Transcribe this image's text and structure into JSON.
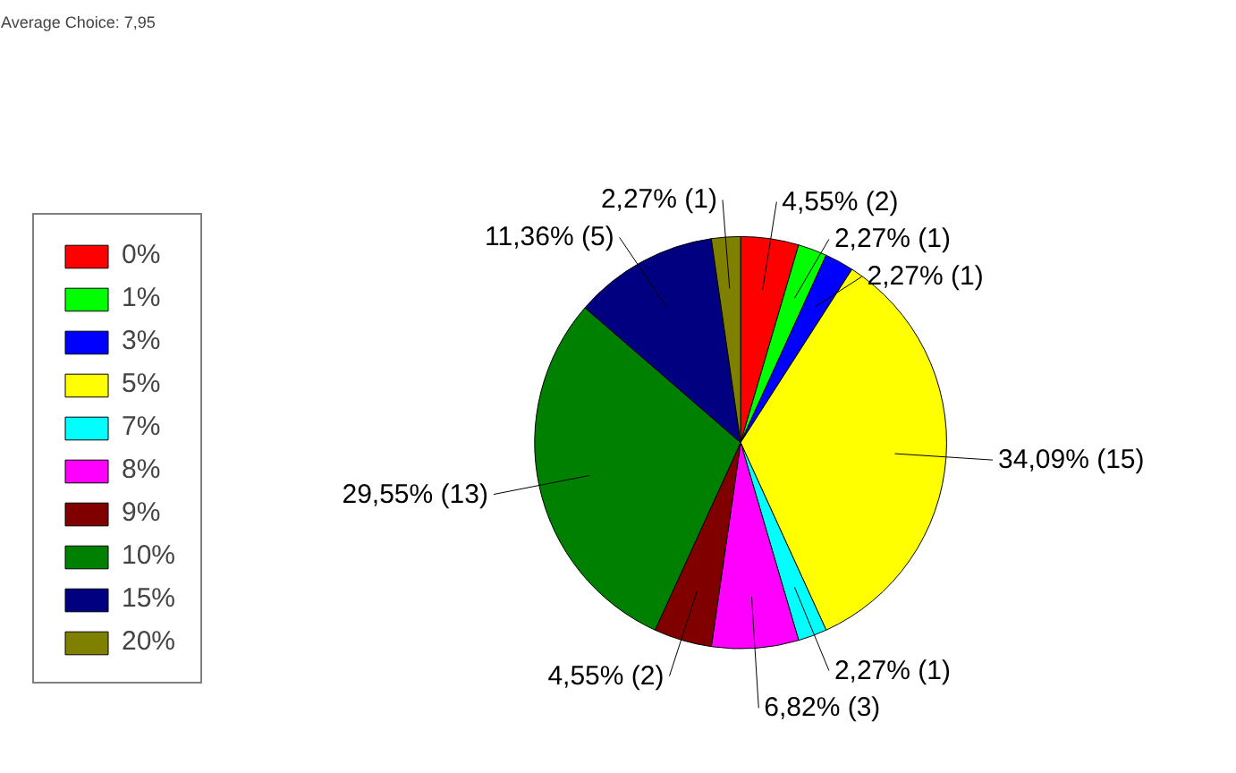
{
  "chart_data": {
    "type": "pie",
    "title": "Average Choice: 7,95",
    "categories": [
      "0%",
      "1%",
      "3%",
      "5%",
      "7%",
      "8%",
      "9%",
      "10%",
      "15%",
      "20%"
    ],
    "values": [
      2,
      1,
      1,
      15,
      1,
      3,
      2,
      13,
      5,
      1
    ],
    "value_labels": [
      "4,55% (2)",
      "2,27% (1)",
      "2,27% (1)",
      "34,09% (15)",
      "2,27% (1)",
      "6,82% (3)",
      "4,55% (2)",
      "29,55% (13)",
      "11,36% (5)",
      "2,27% (1)"
    ],
    "colors": [
      "#ff0000",
      "#00ff00",
      "#0000ff",
      "#ffff00",
      "#00ffff",
      "#ff00ff",
      "#800000",
      "#008000",
      "#000080",
      "#808000"
    ],
    "legend": "left"
  }
}
